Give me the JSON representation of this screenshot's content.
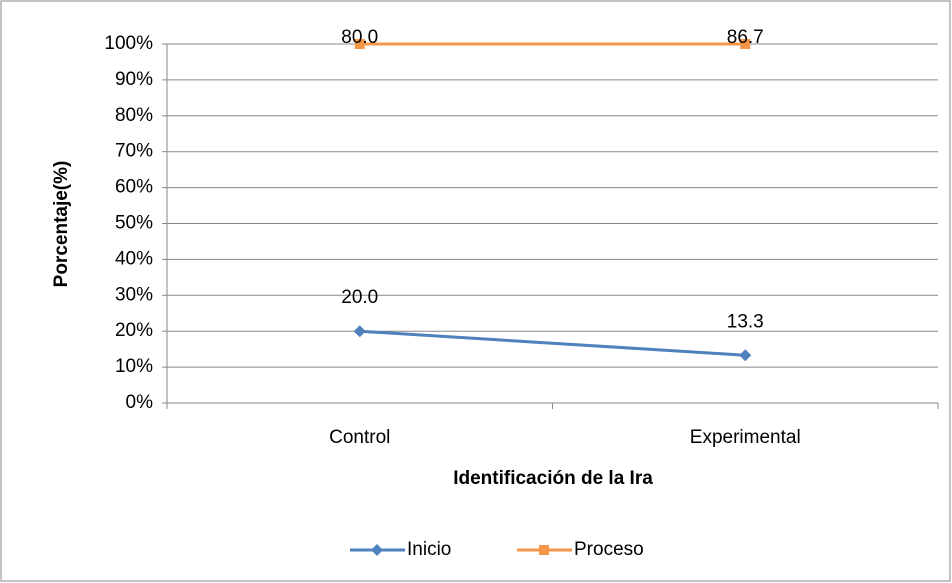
{
  "chart_data": {
    "type": "line",
    "stacked": true,
    "y_label": "Porcentaje(%)",
    "x_label": "Identificación de la Ira",
    "categories": [
      "Control",
      "Experimental"
    ],
    "series": [
      {
        "name": "Inicio",
        "color": "#4f81bd",
        "marker": "diamond",
        "values": [
          20.0,
          13.3
        ],
        "value_labels": [
          "20.0",
          "13.3"
        ]
      },
      {
        "name": "Proceso",
        "color": "#f79646",
        "marker": "square",
        "values": [
          80.0,
          86.7
        ],
        "value_labels": [
          "80.0",
          "86.7"
        ]
      }
    ],
    "ylim": [
      0,
      100
    ],
    "yticks": [
      {
        "value": 0,
        "label": "0%"
      },
      {
        "value": 10,
        "label": "10%"
      },
      {
        "value": 20,
        "label": "20%"
      },
      {
        "value": 30,
        "label": "30%"
      },
      {
        "value": 40,
        "label": "40%"
      },
      {
        "value": 50,
        "label": "50%"
      },
      {
        "value": 60,
        "label": "60%"
      },
      {
        "value": 70,
        "label": "70%"
      },
      {
        "value": 80,
        "label": "80%"
      },
      {
        "value": 90,
        "label": "90%"
      },
      {
        "value": 100,
        "label": "100%"
      }
    ],
    "grid": true,
    "legend": "bottom"
  }
}
